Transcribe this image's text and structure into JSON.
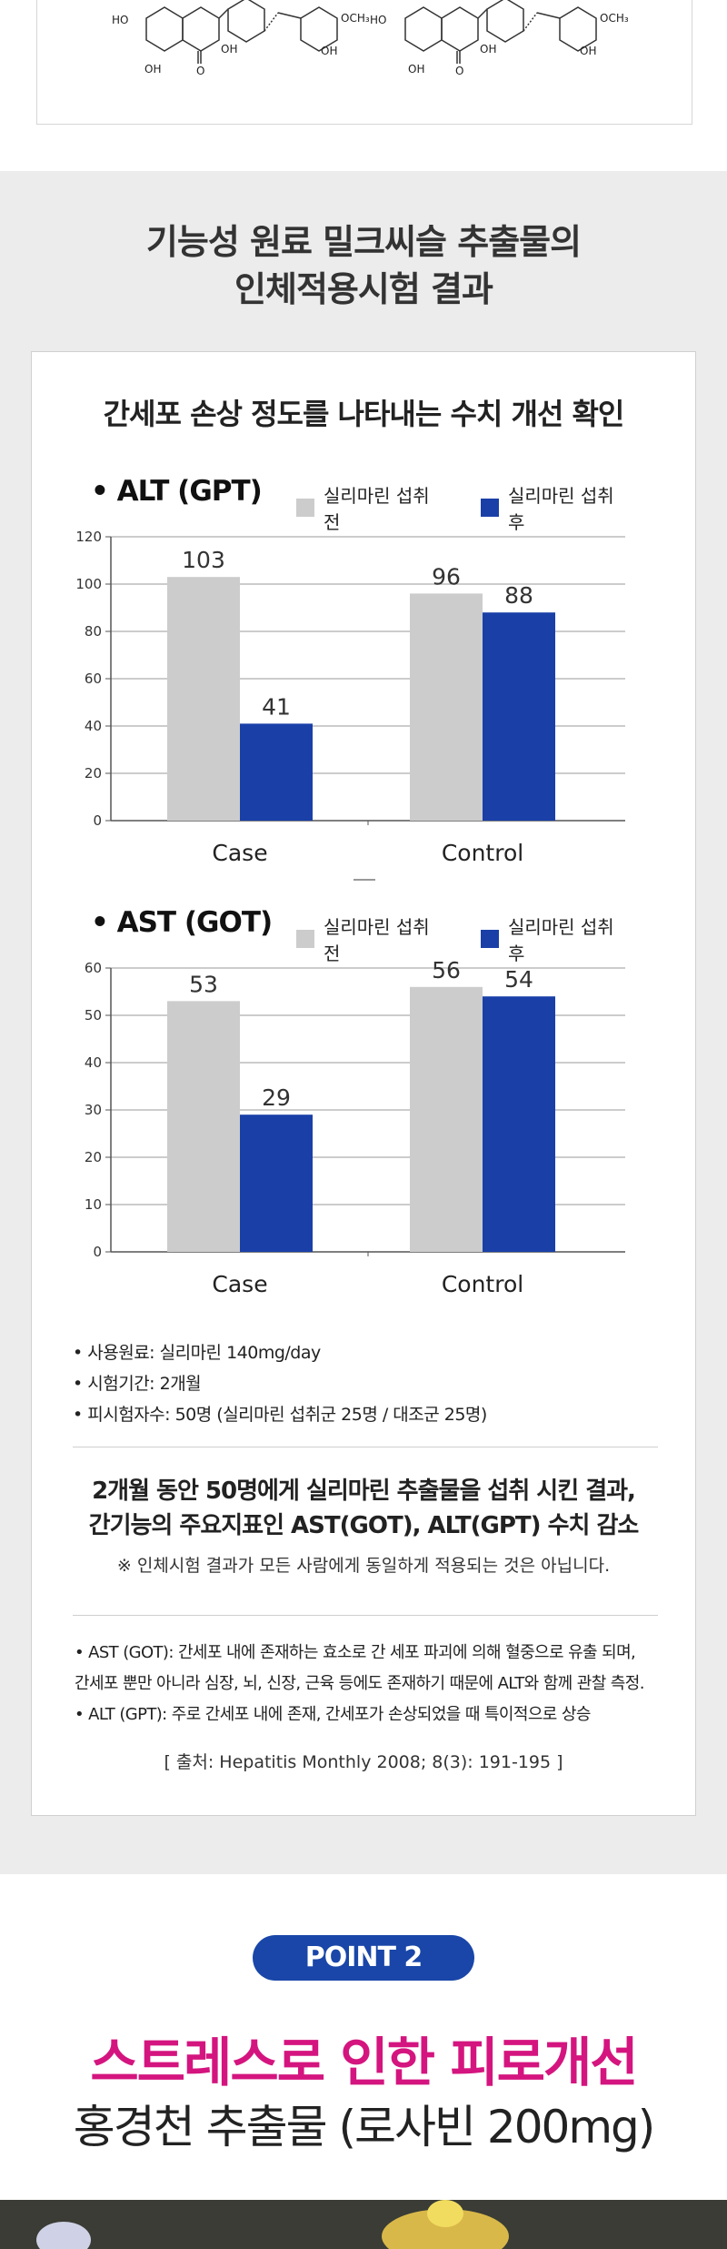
{
  "structures": [
    {
      "ho_top": "HO",
      "och3": "OCH₃",
      "oh_mid": "OH",
      "oh_bottom": "OH",
      "oh_right": "OH",
      "o_carbonyl": "O"
    },
    {
      "ho_top": "HO",
      "och3": "OCH₃",
      "oh_mid": "OH",
      "oh_bottom": "OH",
      "oh_right": "OH",
      "o_carbonyl": "O"
    }
  ],
  "section_title": {
    "line1": "기능성 원료 밀크씨슬 추출물의",
    "line2": "인체적용시험 결과"
  },
  "card_heading": "간세포 손상 정도를 나타내는 수치 개선 확인",
  "legend": {
    "before": "실리마린 섭취 전",
    "after": "실리마린 섭취 후"
  },
  "colors": {
    "before": "#cccccc",
    "after": "#1a40a8",
    "accent_pink": "#d4157f",
    "badge": "#1946a8"
  },
  "chart_data": [
    {
      "type": "bar",
      "title": "• ALT (GPT)",
      "categories": [
        "Case",
        "Control"
      ],
      "series": [
        {
          "name": "실리마린 섭취 전",
          "values": [
            103,
            96
          ]
        },
        {
          "name": "실리마린 섭취 후",
          "values": [
            41,
            88
          ]
        }
      ],
      "ylim": [
        0,
        120
      ],
      "yticks": [
        0,
        20,
        40,
        60,
        80,
        100,
        120
      ],
      "grid": true,
      "legend": "top"
    },
    {
      "type": "bar",
      "title": "• AST (GOT)",
      "categories": [
        "Case",
        "Control"
      ],
      "series": [
        {
          "name": "실리마린 섭취 전",
          "values": [
            53,
            56
          ]
        },
        {
          "name": "실리마린 섭취 후",
          "values": [
            29,
            54
          ]
        }
      ],
      "ylim": [
        0,
        60
      ],
      "yticks": [
        0,
        10,
        20,
        30,
        40,
        50,
        60
      ],
      "grid": true,
      "legend": "top"
    }
  ],
  "notes": [
    "사용원료: 실리마린 140mg/day",
    "시험기간: 2개월",
    "피시험자수: 50명 (실리마린 섭취군 25명 / 대조군 25명)"
  ],
  "summary": {
    "line1": "2개월 동안 50명에게 실리마린 추출물을 섭취 시킨 결과,",
    "line2": "간기능의 주요지표인 AST(GOT), ALT(GPT) 수치 감소"
  },
  "disclaimer": "※ 인체시험 결과가 모든 사람에게 동일하게 적용되는 것은 아닙니다.",
  "definitions": [
    "AST (GOT): 간세포 내에 존재하는 효소로 간 세포 파괴에 의해 혈중으로 유출 되며,",
    "간세포 뿐만 아니라 심장, 뇌, 신장, 근육 등에도 존재하기 때문에 ALT와 함께 관찰 측정.",
    "ALT (GPT): 주로 간세포 내에 존재, 간세포가 손상되었을 때 특이적으로 상승"
  ],
  "source": "[ 출처: Hepatitis Monthly 2008; 8(3): 191-195 ]",
  "point": {
    "badge": "POINT 2",
    "title": "스트레스로 인한 피로개선",
    "subtitle": "홍경천 추출물 (로사빈 200mg)"
  }
}
